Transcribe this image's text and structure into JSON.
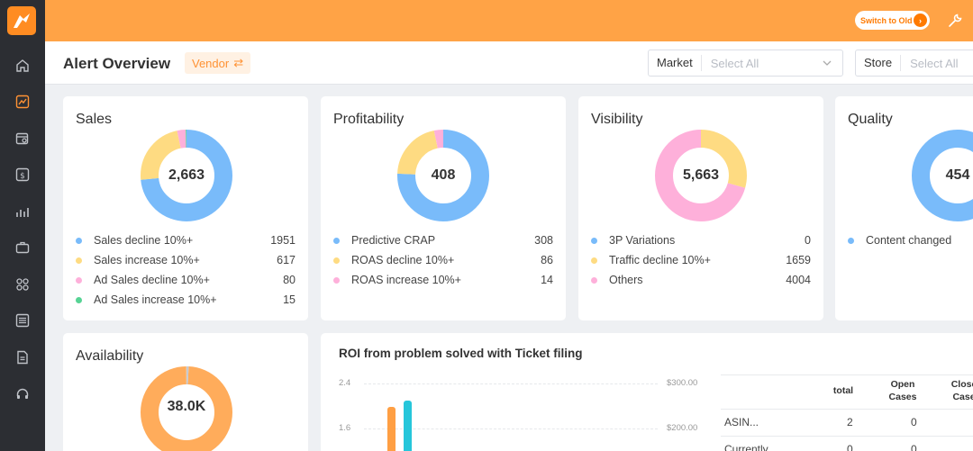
{
  "topbar": {
    "switch_label": "Switch to Old",
    "switch_arrow": "›"
  },
  "header": {
    "title": "Alert Overview",
    "vendor_label": "Vendor",
    "vendor_icon": "⇄",
    "market_label": "Market",
    "market_placeholder": "Select All",
    "store_label": "Store",
    "store_placeholder": "Select All"
  },
  "colors": {
    "blue": "#79bbfa",
    "yellow": "#fedb82",
    "pink": "#feb0da",
    "green": "#56d394",
    "orange": "#ffac5b",
    "accent": "#ffa346"
  },
  "sales": {
    "title": "Sales",
    "total": "2,663",
    "items": [
      {
        "label": "Sales decline 10%+",
        "value": "1951"
      },
      {
        "label": "Sales increase 10%+",
        "value": "617"
      },
      {
        "label": "Ad Sales decline 10%+",
        "value": "80"
      },
      {
        "label": "Ad Sales increase 10%+",
        "value": "15"
      }
    ]
  },
  "profitability": {
    "title": "Profitability",
    "total": "408",
    "items": [
      {
        "label": "Predictive CRAP",
        "value": "308"
      },
      {
        "label": "ROAS decline 10%+",
        "value": "86"
      },
      {
        "label": "ROAS increase 10%+",
        "value": "14"
      }
    ]
  },
  "visibility": {
    "title": "Visibility",
    "total": "5,663",
    "items": [
      {
        "label": "3P Variations",
        "value": "0"
      },
      {
        "label": "Traffic decline 10%+",
        "value": "1659"
      },
      {
        "label": "Others",
        "value": "4004"
      }
    ]
  },
  "quality": {
    "title": "Quality",
    "total": "454",
    "items": [
      {
        "label": "Content changed",
        "value": ""
      }
    ]
  },
  "availability": {
    "title": "Availability",
    "total": "38.0K"
  },
  "roi": {
    "title": "ROI from problem solved with Ticket filing",
    "y_left": [
      "2.4",
      "1.6"
    ],
    "y_right": [
      "$300.00",
      "$200.00"
    ],
    "table": {
      "headers": [
        "total",
        "Open Cases",
        "Closed Cases"
      ],
      "header_lines": [
        [
          "total"
        ],
        [
          "Open",
          "Cases"
        ],
        [
          "Close",
          "Case"
        ]
      ],
      "rows": [
        {
          "name": "ASIN...",
          "total": "2",
          "open": "0"
        },
        {
          "name": "Currently...",
          "total": "0",
          "open": "0"
        }
      ]
    }
  },
  "chart_data": {
    "type": "bar",
    "title": "ROI from problem solved with Ticket filing",
    "y_left_ticks": [
      1.6,
      2.4
    ],
    "y_right_ticks": [
      "$200.00",
      "$300.00"
    ],
    "series": [
      {
        "color": "#ff9f43",
        "value": 1.9
      },
      {
        "color": "#26c6da",
        "value": 2.1
      }
    ]
  }
}
